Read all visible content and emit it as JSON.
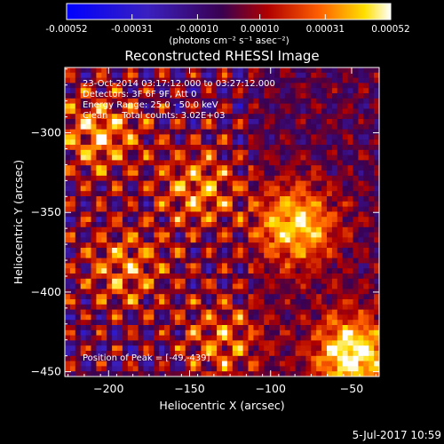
{
  "title": "Reconstructed RHESSI Image",
  "footer_date": "5-Jul-2017 10:59",
  "info_lines": [
    "23-Oct-2014 03:17:12.000 to 03:27:12.000",
    "Detectors: 3F 6F 9F, Att 0",
    "Energy Range: 25.0 - 50.0 keV",
    "Clean     Total counts: 3.02E+03"
  ],
  "peak_text": "Position of Peak = [-49,-439]",
  "colorbar": {
    "tick_labels": [
      "-0.00052",
      "-0.00031",
      "-0.00010",
      "0.00010",
      "0.00031",
      "0.00052"
    ],
    "tick_values": [
      -0.00052,
      -0.00031,
      -0.0001,
      0.0001,
      0.00031,
      0.00052
    ],
    "range": [
      -0.00052,
      0.00052
    ],
    "unit_label": "(photons cm⁻² s⁻¹ asec⁻²)"
  },
  "chart_data": {
    "type": "heatmap",
    "title": "Reconstructed RHESSI Image",
    "xlabel": "Heliocentric X (arcsec)",
    "ylabel": "Heliocentric Y (arcsec)",
    "xlim": [
      -227,
      -33
    ],
    "ylim": [
      -453,
      -259
    ],
    "x_ticks": [
      -200,
      -150,
      -100,
      -50
    ],
    "y_ticks": [
      -450,
      -400,
      -350,
      -300
    ],
    "colormap": "blue-purple-red-yellow-white",
    "value_range": [
      -0.00052,
      0.00052
    ],
    "peak": [
      -49,
      -439
    ],
    "sources": [
      {
        "x": -85,
        "y": -358,
        "value": 0.00045
      },
      {
        "x": -49,
        "y": -439,
        "value": 0.00052
      },
      {
        "x": -205,
        "y": -300,
        "value": 0.00035
      },
      {
        "x": -145,
        "y": -335,
        "value": 0.0003
      },
      {
        "x": -190,
        "y": -385,
        "value": 0.00028
      },
      {
        "x": -130,
        "y": -430,
        "value": 0.00026
      }
    ]
  }
}
